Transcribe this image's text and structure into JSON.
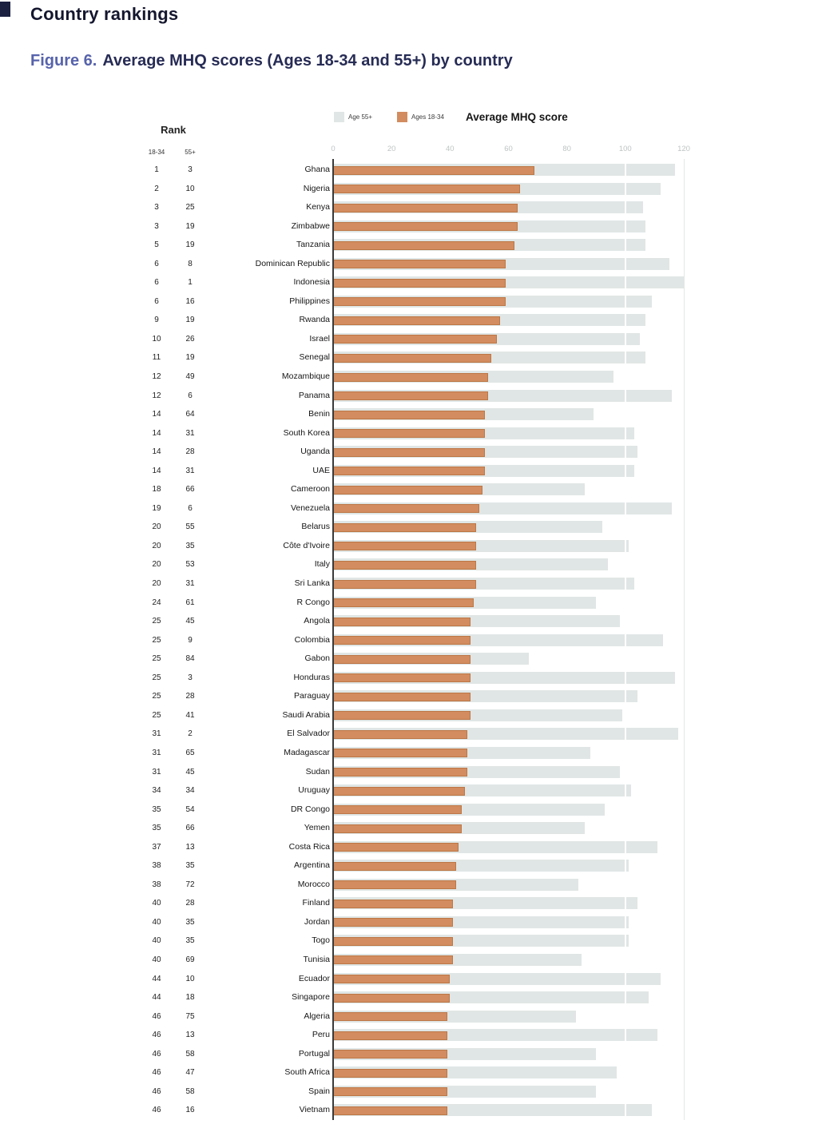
{
  "page": {
    "heading": "Country rankings",
    "figure_label": "Figure 6.",
    "figure_title": "Average MHQ scores (Ages 18-34 and 55+) by country"
  },
  "chart_data": {
    "type": "bar",
    "orientation": "horizontal",
    "title": "Average MHQ score",
    "xlabel": "Average MHQ score",
    "ylabel": "",
    "xlim": [
      0,
      120
    ],
    "x_ticks": [
      "0",
      "20",
      "40",
      "60",
      "80",
      "100",
      "120"
    ],
    "grid": "minimal",
    "legend_position": "top",
    "legend": [
      {
        "label": "Age 55+",
        "color": "#e0e6e5"
      },
      {
        "label": "Ages 18-34",
        "color": "#d28c5f"
      }
    ],
    "rank_header": "Rank",
    "rank_subheaders": [
      "18-34",
      "55+"
    ],
    "rows": [
      {
        "rank_18_34": "1",
        "rank_55": "3",
        "country": "Ghana",
        "age_18_34": 69,
        "age_55": 117
      },
      {
        "rank_18_34": "2",
        "rank_55": "10",
        "country": "Nigeria",
        "age_18_34": 64,
        "age_55": 112
      },
      {
        "rank_18_34": "3",
        "rank_55": "25",
        "country": "Kenya",
        "age_18_34": 63,
        "age_55": 106
      },
      {
        "rank_18_34": "3",
        "rank_55": "19",
        "country": "Zimbabwe",
        "age_18_34": 63,
        "age_55": 107
      },
      {
        "rank_18_34": "5",
        "rank_55": "19",
        "country": "Tanzania",
        "age_18_34": 62,
        "age_55": 107
      },
      {
        "rank_18_34": "6",
        "rank_55": "8",
        "country": "Dominican Republic",
        "age_18_34": 59,
        "age_55": 115
      },
      {
        "rank_18_34": "6",
        "rank_55": "1",
        "country": "Indonesia",
        "age_18_34": 59,
        "age_55": 120
      },
      {
        "rank_18_34": "6",
        "rank_55": "16",
        "country": "Philippines",
        "age_18_34": 59,
        "age_55": 109
      },
      {
        "rank_18_34": "9",
        "rank_55": "19",
        "country": "Rwanda",
        "age_18_34": 57,
        "age_55": 107
      },
      {
        "rank_18_34": "10",
        "rank_55": "26",
        "country": "Israel",
        "age_18_34": 56,
        "age_55": 105
      },
      {
        "rank_18_34": "11",
        "rank_55": "19",
        "country": "Senegal",
        "age_18_34": 54,
        "age_55": 107
      },
      {
        "rank_18_34": "12",
        "rank_55": "49",
        "country": "Mozambique",
        "age_18_34": 53,
        "age_55": 96
      },
      {
        "rank_18_34": "12",
        "rank_55": "6",
        "country": "Panama",
        "age_18_34": 53,
        "age_55": 116
      },
      {
        "rank_18_34": "14",
        "rank_55": "64",
        "country": "Benin",
        "age_18_34": 52,
        "age_55": 89
      },
      {
        "rank_18_34": "14",
        "rank_55": "31",
        "country": "South Korea",
        "age_18_34": 52,
        "age_55": 103
      },
      {
        "rank_18_34": "14",
        "rank_55": "28",
        "country": "Uganda",
        "age_18_34": 52,
        "age_55": 104
      },
      {
        "rank_18_34": "14",
        "rank_55": "31",
        "country": "UAE",
        "age_18_34": 52,
        "age_55": 103
      },
      {
        "rank_18_34": "18",
        "rank_55": "66",
        "country": "Cameroon",
        "age_18_34": 51,
        "age_55": 86
      },
      {
        "rank_18_34": "19",
        "rank_55": "6",
        "country": "Venezuela",
        "age_18_34": 50,
        "age_55": 116
      },
      {
        "rank_18_34": "20",
        "rank_55": "55",
        "country": "Belarus",
        "age_18_34": 49,
        "age_55": 92
      },
      {
        "rank_18_34": "20",
        "rank_55": "35",
        "country": "Côte d'Ivoire",
        "age_18_34": 49,
        "age_55": 101
      },
      {
        "rank_18_34": "20",
        "rank_55": "53",
        "country": "Italy",
        "age_18_34": 49,
        "age_55": 94
      },
      {
        "rank_18_34": "20",
        "rank_55": "31",
        "country": "Sri Lanka",
        "age_18_34": 49,
        "age_55": 103
      },
      {
        "rank_18_34": "24",
        "rank_55": "61",
        "country": "R Congo",
        "age_18_34": 48,
        "age_55": 90
      },
      {
        "rank_18_34": "25",
        "rank_55": "45",
        "country": "Angola",
        "age_18_34": 47,
        "age_55": 98
      },
      {
        "rank_18_34": "25",
        "rank_55": "9",
        "country": "Colombia",
        "age_18_34": 47,
        "age_55": 113
      },
      {
        "rank_18_34": "25",
        "rank_55": "84",
        "country": "Gabon",
        "age_18_34": 47,
        "age_55": 67
      },
      {
        "rank_18_34": "25",
        "rank_55": "3",
        "country": "Honduras",
        "age_18_34": 47,
        "age_55": 117
      },
      {
        "rank_18_34": "25",
        "rank_55": "28",
        "country": "Paraguay",
        "age_18_34": 47,
        "age_55": 104
      },
      {
        "rank_18_34": "25",
        "rank_55": "41",
        "country": "Saudi Arabia",
        "age_18_34": 47,
        "age_55": 99
      },
      {
        "rank_18_34": "31",
        "rank_55": "2",
        "country": "El Salvador",
        "age_18_34": 46,
        "age_55": 118
      },
      {
        "rank_18_34": "31",
        "rank_55": "65",
        "country": "Madagascar",
        "age_18_34": 46,
        "age_55": 88
      },
      {
        "rank_18_34": "31",
        "rank_55": "45",
        "country": "Sudan",
        "age_18_34": 46,
        "age_55": 98
      },
      {
        "rank_18_34": "34",
        "rank_55": "34",
        "country": "Uruguay",
        "age_18_34": 45,
        "age_55": 102
      },
      {
        "rank_18_34": "35",
        "rank_55": "54",
        "country": "DR Congo",
        "age_18_34": 44,
        "age_55": 93
      },
      {
        "rank_18_34": "35",
        "rank_55": "66",
        "country": "Yemen",
        "age_18_34": 44,
        "age_55": 86
      },
      {
        "rank_18_34": "37",
        "rank_55": "13",
        "country": "Costa Rica",
        "age_18_34": 43,
        "age_55": 111
      },
      {
        "rank_18_34": "38",
        "rank_55": "35",
        "country": "Argentina",
        "age_18_34": 42,
        "age_55": 101
      },
      {
        "rank_18_34": "38",
        "rank_55": "72",
        "country": "Morocco",
        "age_18_34": 42,
        "age_55": 84
      },
      {
        "rank_18_34": "40",
        "rank_55": "28",
        "country": "Finland",
        "age_18_34": 41,
        "age_55": 104
      },
      {
        "rank_18_34": "40",
        "rank_55": "35",
        "country": "Jordan",
        "age_18_34": 41,
        "age_55": 101
      },
      {
        "rank_18_34": "40",
        "rank_55": "35",
        "country": "Togo",
        "age_18_34": 41,
        "age_55": 101
      },
      {
        "rank_18_34": "40",
        "rank_55": "69",
        "country": "Tunisia",
        "age_18_34": 41,
        "age_55": 85
      },
      {
        "rank_18_34": "44",
        "rank_55": "10",
        "country": "Ecuador",
        "age_18_34": 40,
        "age_55": 112
      },
      {
        "rank_18_34": "44",
        "rank_55": "18",
        "country": "Singapore",
        "age_18_34": 40,
        "age_55": 108
      },
      {
        "rank_18_34": "46",
        "rank_55": "75",
        "country": "Algeria",
        "age_18_34": 39,
        "age_55": 83
      },
      {
        "rank_18_34": "46",
        "rank_55": "13",
        "country": "Peru",
        "age_18_34": 39,
        "age_55": 111
      },
      {
        "rank_18_34": "46",
        "rank_55": "58",
        "country": "Portugal",
        "age_18_34": 39,
        "age_55": 90
      },
      {
        "rank_18_34": "46",
        "rank_55": "47",
        "country": "South Africa",
        "age_18_34": 39,
        "age_55": 97
      },
      {
        "rank_18_34": "46",
        "rank_55": "58",
        "country": "Spain",
        "age_18_34": 39,
        "age_55": 90
      },
      {
        "rank_18_34": "46",
        "rank_55": "16",
        "country": "Vietnam",
        "age_18_34": 39,
        "age_55": 109
      }
    ]
  }
}
